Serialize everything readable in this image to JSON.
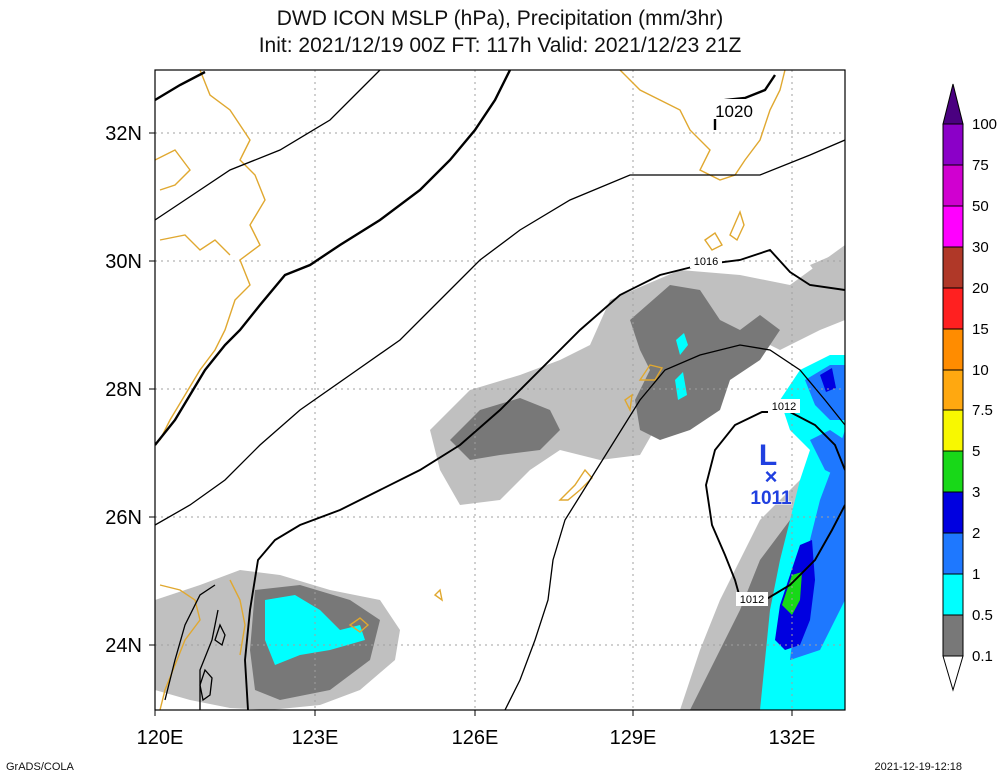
{
  "title": {
    "line1": "DWD ICON MSLP (hPa), Precipitation (mm/3hr)",
    "line2": "Init: 2021/12/19 00Z  FT: 117h  Valid: 2021/12/23 21Z"
  },
  "axes": {
    "lon_labels": [
      "120E",
      "123E",
      "126E",
      "129E",
      "132E"
    ],
    "lat_labels": [
      "32N",
      "30N",
      "28N",
      "26N",
      "24N"
    ]
  },
  "isobar_labels": [
    "1020",
    "1016",
    "1012",
    "1012"
  ],
  "low_center": {
    "symbol": "L",
    "marker": "×",
    "pressure": "1011"
  },
  "colorbar": {
    "levels": [
      "100",
      "75",
      "50",
      "30",
      "20",
      "15",
      "10",
      "7.5",
      "5",
      "3",
      "2",
      "1",
      "0.5",
      "0.1"
    ],
    "colors": [
      "#4a0080",
      "#8b00c8",
      "#d000d0",
      "#ff00ff",
      "#b03828",
      "#ff2020",
      "#ff8c00",
      "#ffa810",
      "#f8f800",
      "#18d818",
      "#0000e0",
      "#1e78ff",
      "#00ffff",
      "#787878",
      "#c0c0c0",
      "#ffffff"
    ]
  },
  "colors": {
    "coastline": "#e0a830",
    "grid": "#a0a0a0",
    "isobar": "#000000",
    "low_label": "#2040e0"
  },
  "footer": {
    "left": "GrADS/COLA",
    "right": "2021-12-19-12:18"
  }
}
